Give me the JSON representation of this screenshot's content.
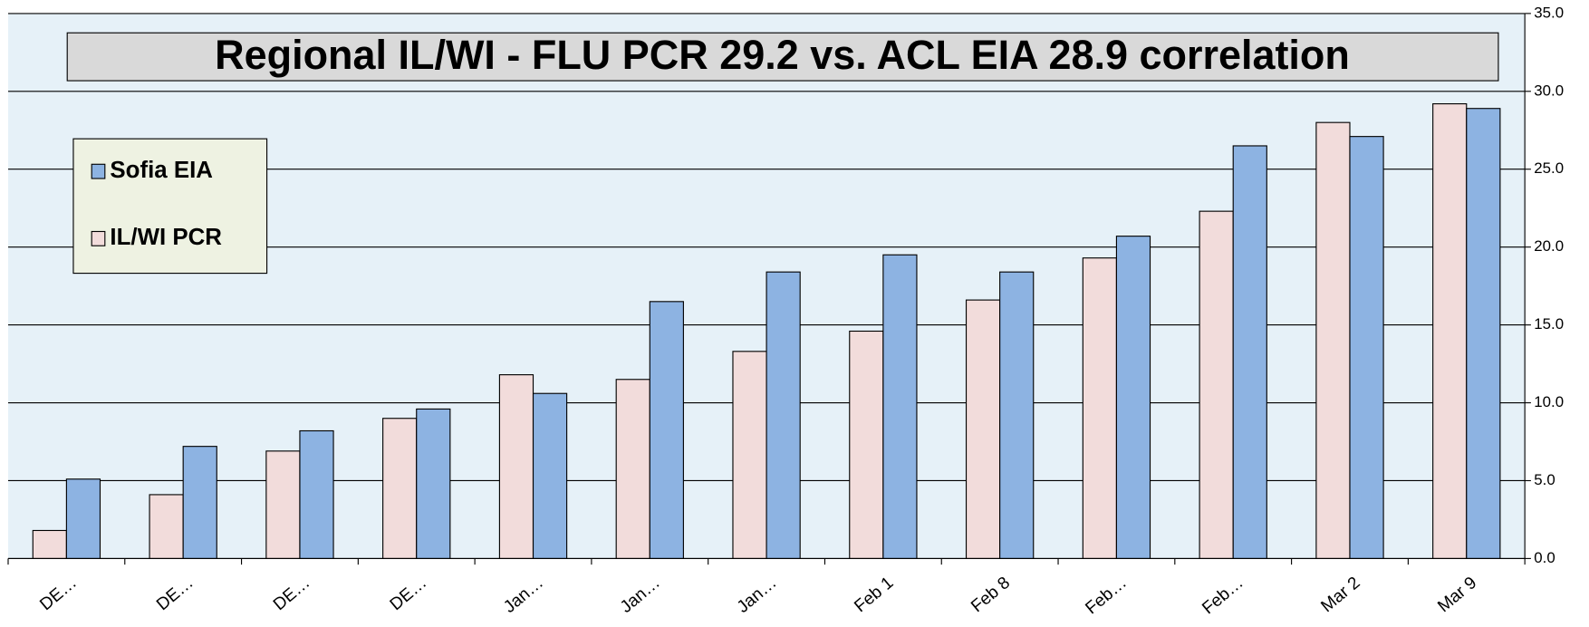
{
  "chart_data": {
    "type": "bar",
    "title": "Regional IL/WI -  FLU PCR 29.2 vs. ACL EIA 28.9 correlation",
    "categories": [
      "DE…",
      "DE…",
      "DE…",
      "DE…",
      "Jan…",
      "Jan…",
      "Jan…",
      "Feb 1",
      "Feb 8",
      "Feb…",
      "Feb…",
      "Mar 2",
      "Mar 9"
    ],
    "series": [
      {
        "name": "IL/WI PCR",
        "color": "#f2dcdb",
        "values": [
          1.8,
          4.1,
          6.9,
          9.0,
          11.8,
          11.5,
          13.3,
          14.6,
          16.6,
          19.3,
          22.3,
          28.0,
          29.2
        ]
      },
      {
        "name": "Sofia EIA",
        "color": "#8db3e2",
        "values": [
          5.1,
          7.2,
          8.2,
          9.6,
          10.6,
          16.5,
          18.4,
          19.5,
          18.4,
          20.7,
          26.5,
          27.1,
          28.9
        ]
      }
    ],
    "ylim": [
      0,
      35
    ],
    "yticks": [
      {
        "value": 0,
        "label": "0.0"
      },
      {
        "value": 5,
        "label": "5.0"
      },
      {
        "value": 10,
        "label": "10.0"
      },
      {
        "value": 15,
        "label": "15.0"
      },
      {
        "value": 20,
        "label": "20.0"
      },
      {
        "value": 25,
        "label": "25.0"
      },
      {
        "value": 30,
        "label": "30.0"
      },
      {
        "value": 35,
        "label": "35.0"
      }
    ],
    "grid": true,
    "legend_position": "upper left",
    "y_axis_side": "right"
  }
}
